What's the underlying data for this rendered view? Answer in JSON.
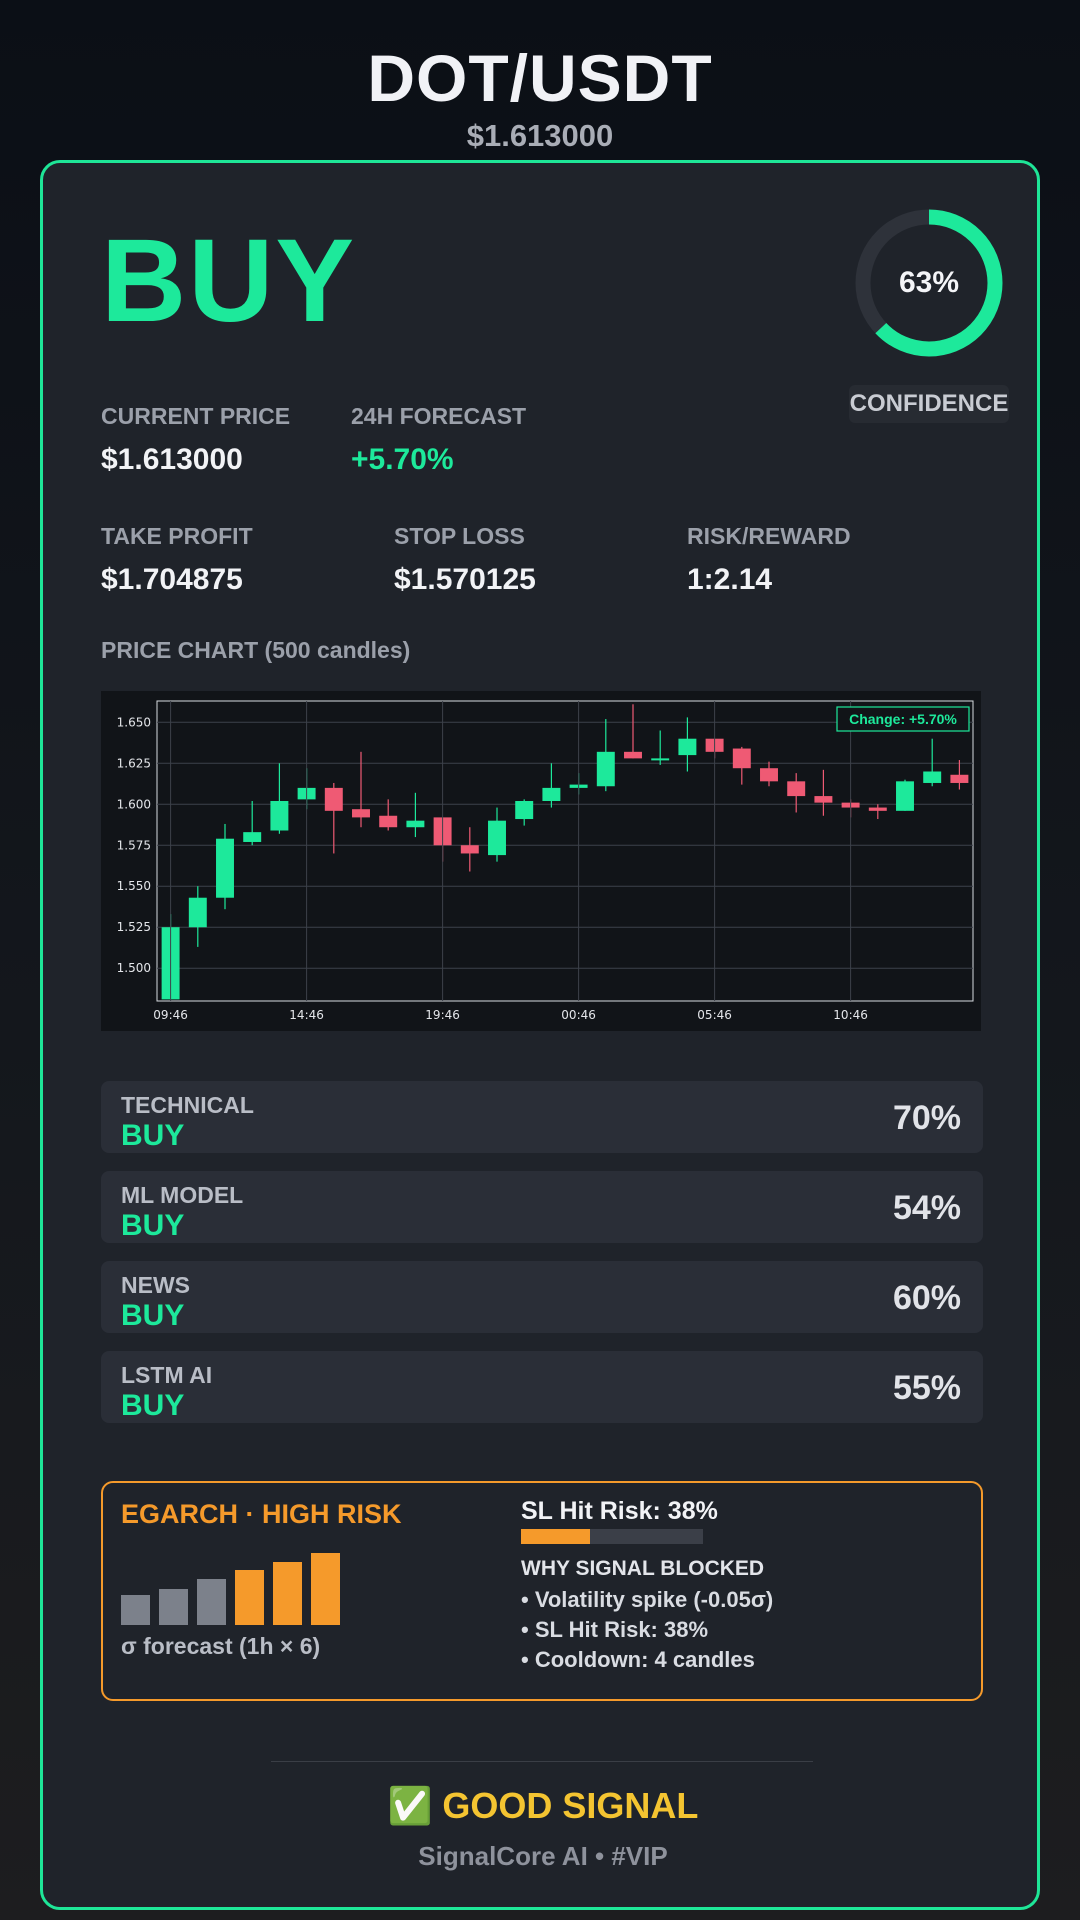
{
  "header": {
    "pair": "DOT/USDT",
    "price": "$1.613000"
  },
  "signal": {
    "label": "BUY",
    "confidence_pct": 63,
    "confidence_text": "63%",
    "confidence_label": "CONFIDENCE"
  },
  "stats": {
    "current_price_label": "CURRENT PRICE",
    "current_price": "$1.613000",
    "forecast_label": "24H FORECAST",
    "forecast": "+5.70%",
    "take_profit_label": "TAKE PROFIT",
    "take_profit": "$1.704875",
    "stop_loss_label": "STOP LOSS",
    "stop_loss": "$1.570125",
    "risk_reward_label": "RISK/REWARD",
    "risk_reward": "1:2.14"
  },
  "chart_title": "PRICE CHART (500 candles)",
  "chart_data": {
    "type": "candlestick",
    "annotation": "Change: +5.70%",
    "ylim": [
      1.48,
      1.663
    ],
    "yticks": [
      "1.500",
      "1.525",
      "1.550",
      "1.575",
      "1.600",
      "1.625",
      "1.650"
    ],
    "xticks": [
      "09:46",
      "14:46",
      "19:46",
      "00:46",
      "05:46",
      "10:46"
    ],
    "grid": true,
    "candles": [
      {
        "o": 1.481,
        "h": 1.533,
        "l": 1.481,
        "c": 1.525
      },
      {
        "o": 1.525,
        "h": 1.55,
        "l": 1.513,
        "c": 1.543
      },
      {
        "o": 1.543,
        "h": 1.588,
        "l": 1.536,
        "c": 1.579
      },
      {
        "o": 1.577,
        "h": 1.602,
        "l": 1.575,
        "c": 1.583
      },
      {
        "o": 1.584,
        "h": 1.625,
        "l": 1.582,
        "c": 1.602
      },
      {
        "o": 1.603,
        "h": 1.622,
        "l": 1.597,
        "c": 1.61
      },
      {
        "o": 1.61,
        "h": 1.613,
        "l": 1.57,
        "c": 1.596
      },
      {
        "o": 1.597,
        "h": 1.632,
        "l": 1.586,
        "c": 1.592
      },
      {
        "o": 1.593,
        "h": 1.603,
        "l": 1.584,
        "c": 1.586
      },
      {
        "o": 1.586,
        "h": 1.607,
        "l": 1.58,
        "c": 1.59
      },
      {
        "o": 1.592,
        "h": 1.592,
        "l": 1.565,
        "c": 1.575
      },
      {
        "o": 1.575,
        "h": 1.586,
        "l": 1.559,
        "c": 1.57
      },
      {
        "o": 1.569,
        "h": 1.598,
        "l": 1.565,
        "c": 1.59
      },
      {
        "o": 1.591,
        "h": 1.603,
        "l": 1.587,
        "c": 1.602
      },
      {
        "o": 1.602,
        "h": 1.625,
        "l": 1.598,
        "c": 1.61
      },
      {
        "o": 1.61,
        "h": 1.619,
        "l": 1.606,
        "c": 1.612
      },
      {
        "o": 1.611,
        "h": 1.652,
        "l": 1.608,
        "c": 1.632
      },
      {
        "o": 1.632,
        "h": 1.661,
        "l": 1.628,
        "c": 1.628
      },
      {
        "o": 1.628,
        "h": 1.645,
        "l": 1.624,
        "c": 1.628
      },
      {
        "o": 1.63,
        "h": 1.653,
        "l": 1.62,
        "c": 1.64
      },
      {
        "o": 1.64,
        "h": 1.64,
        "l": 1.628,
        "c": 1.632
      },
      {
        "o": 1.634,
        "h": 1.635,
        "l": 1.612,
        "c": 1.622
      },
      {
        "o": 1.622,
        "h": 1.626,
        "l": 1.611,
        "c": 1.614
      },
      {
        "o": 1.614,
        "h": 1.619,
        "l": 1.595,
        "c": 1.605
      },
      {
        "o": 1.605,
        "h": 1.621,
        "l": 1.593,
        "c": 1.601
      },
      {
        "o": 1.601,
        "h": 1.603,
        "l": 1.592,
        "c": 1.598
      },
      {
        "o": 1.598,
        "h": 1.6,
        "l": 1.591,
        "c": 1.596
      },
      {
        "o": 1.596,
        "h": 1.615,
        "l": 1.596,
        "c": 1.614
      },
      {
        "o": 1.613,
        "h": 1.64,
        "l": 1.611,
        "c": 1.62
      },
      {
        "o": 1.618,
        "h": 1.627,
        "l": 1.609,
        "c": 1.613
      }
    ]
  },
  "components": [
    {
      "name": "TECHNICAL",
      "signal": "BUY",
      "pct": "70%"
    },
    {
      "name": "ML MODEL",
      "signal": "BUY",
      "pct": "54%"
    },
    {
      "name": "NEWS",
      "signal": "BUY",
      "pct": "60%"
    },
    {
      "name": "LSTM AI",
      "signal": "BUY",
      "pct": "55%"
    }
  ],
  "risk": {
    "title": "EGARCH · HIGH RISK",
    "sigma_label": "σ forecast (1h × 6)",
    "sigma_levels": [
      0.42,
      0.5,
      0.64,
      0.77,
      0.87,
      1.0
    ],
    "sl_hit_text": "SL Hit Risk: 38%",
    "sl_hit_pct": 38,
    "blocked_title": "WHY SIGNAL BLOCKED",
    "reasons": [
      "• Volatility spike (-0.05σ)",
      "• SL Hit Risk: 38%",
      "• Cooldown: 4 candles"
    ]
  },
  "footer": {
    "verdict": "✅ GOOD SIGNAL",
    "brand": "SignalCore AI • #VIP"
  },
  "colors": {
    "accent": "#1de99b",
    "down": "#ef5a74",
    "warn": "#f59a2b",
    "gold": "#f4c431",
    "bar_grey": "#7c818b"
  }
}
